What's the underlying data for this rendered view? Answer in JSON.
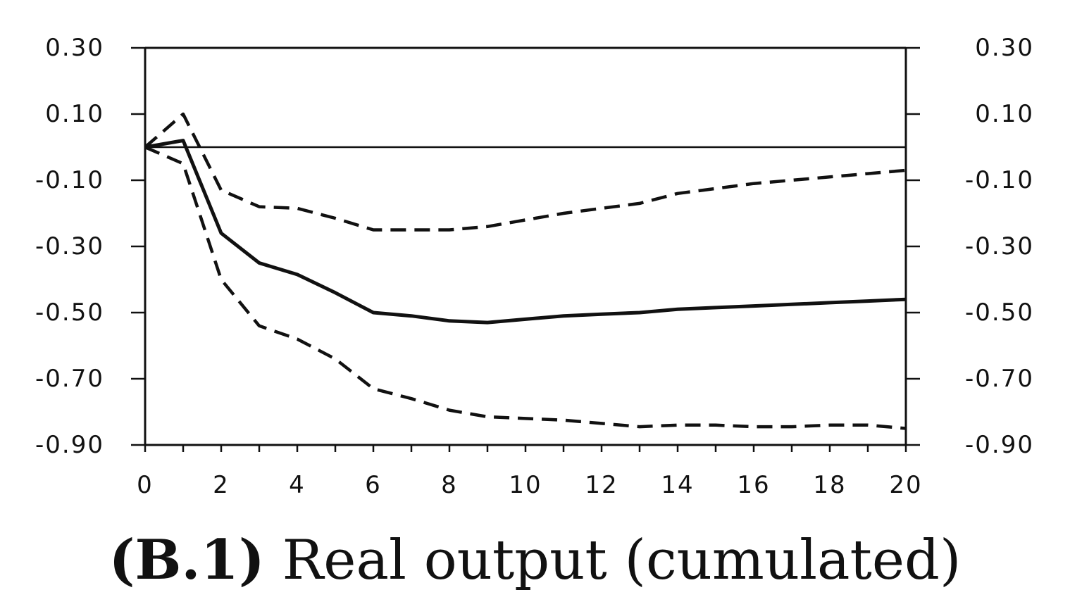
{
  "chart_data": {
    "type": "line",
    "x": [
      0,
      1,
      2,
      3,
      4,
      5,
      6,
      7,
      8,
      9,
      10,
      11,
      12,
      13,
      14,
      15,
      16,
      17,
      18,
      19,
      20
    ],
    "xlim": [
      0,
      20
    ],
    "ylim": [
      -0.9,
      0.3
    ],
    "x_tick_labels": [
      "0",
      "2",
      "4",
      "6",
      "8",
      "10",
      "12",
      "14",
      "16",
      "18",
      "20"
    ],
    "y_tick_labels": [
      "0.30",
      "0.10",
      "-0.10",
      "-0.30",
      "-0.50",
      "-0.70",
      "-0.90"
    ],
    "y_tick_values": [
      0.3,
      0.1,
      -0.1,
      -0.3,
      -0.5,
      -0.7,
      -0.9
    ],
    "reference_line_y": 0,
    "series": [
      {
        "style": "solid",
        "values": [
          0,
          0.02,
          -0.26,
          -0.35,
          -0.385,
          -0.44,
          -0.5,
          -0.51,
          -0.525,
          -0.53,
          -0.52,
          -0.51,
          -0.505,
          -0.5,
          -0.49,
          -0.485,
          -0.48,
          -0.475,
          -0.47,
          -0.465,
          -0.46
        ]
      },
      {
        "style": "dashed",
        "values": [
          0,
          0.1,
          -0.13,
          -0.18,
          -0.185,
          -0.215,
          -0.25,
          -0.25,
          -0.25,
          -0.24,
          -0.22,
          -0.2,
          -0.185,
          -0.17,
          -0.14,
          -0.125,
          -0.11,
          -0.1,
          -0.09,
          -0.08,
          -0.07
        ]
      },
      {
        "style": "dashed",
        "values": [
          0,
          -0.05,
          -0.4,
          -0.54,
          -0.58,
          -0.64,
          -0.73,
          -0.76,
          -0.795,
          -0.815,
          -0.82,
          -0.825,
          -0.835,
          -0.845,
          -0.84,
          -0.84,
          -0.845,
          -0.845,
          -0.84,
          -0.84,
          -0.85
        ]
      }
    ],
    "caption_prefix": "(B.1)",
    "caption_text": "Real output (cumulated)"
  }
}
